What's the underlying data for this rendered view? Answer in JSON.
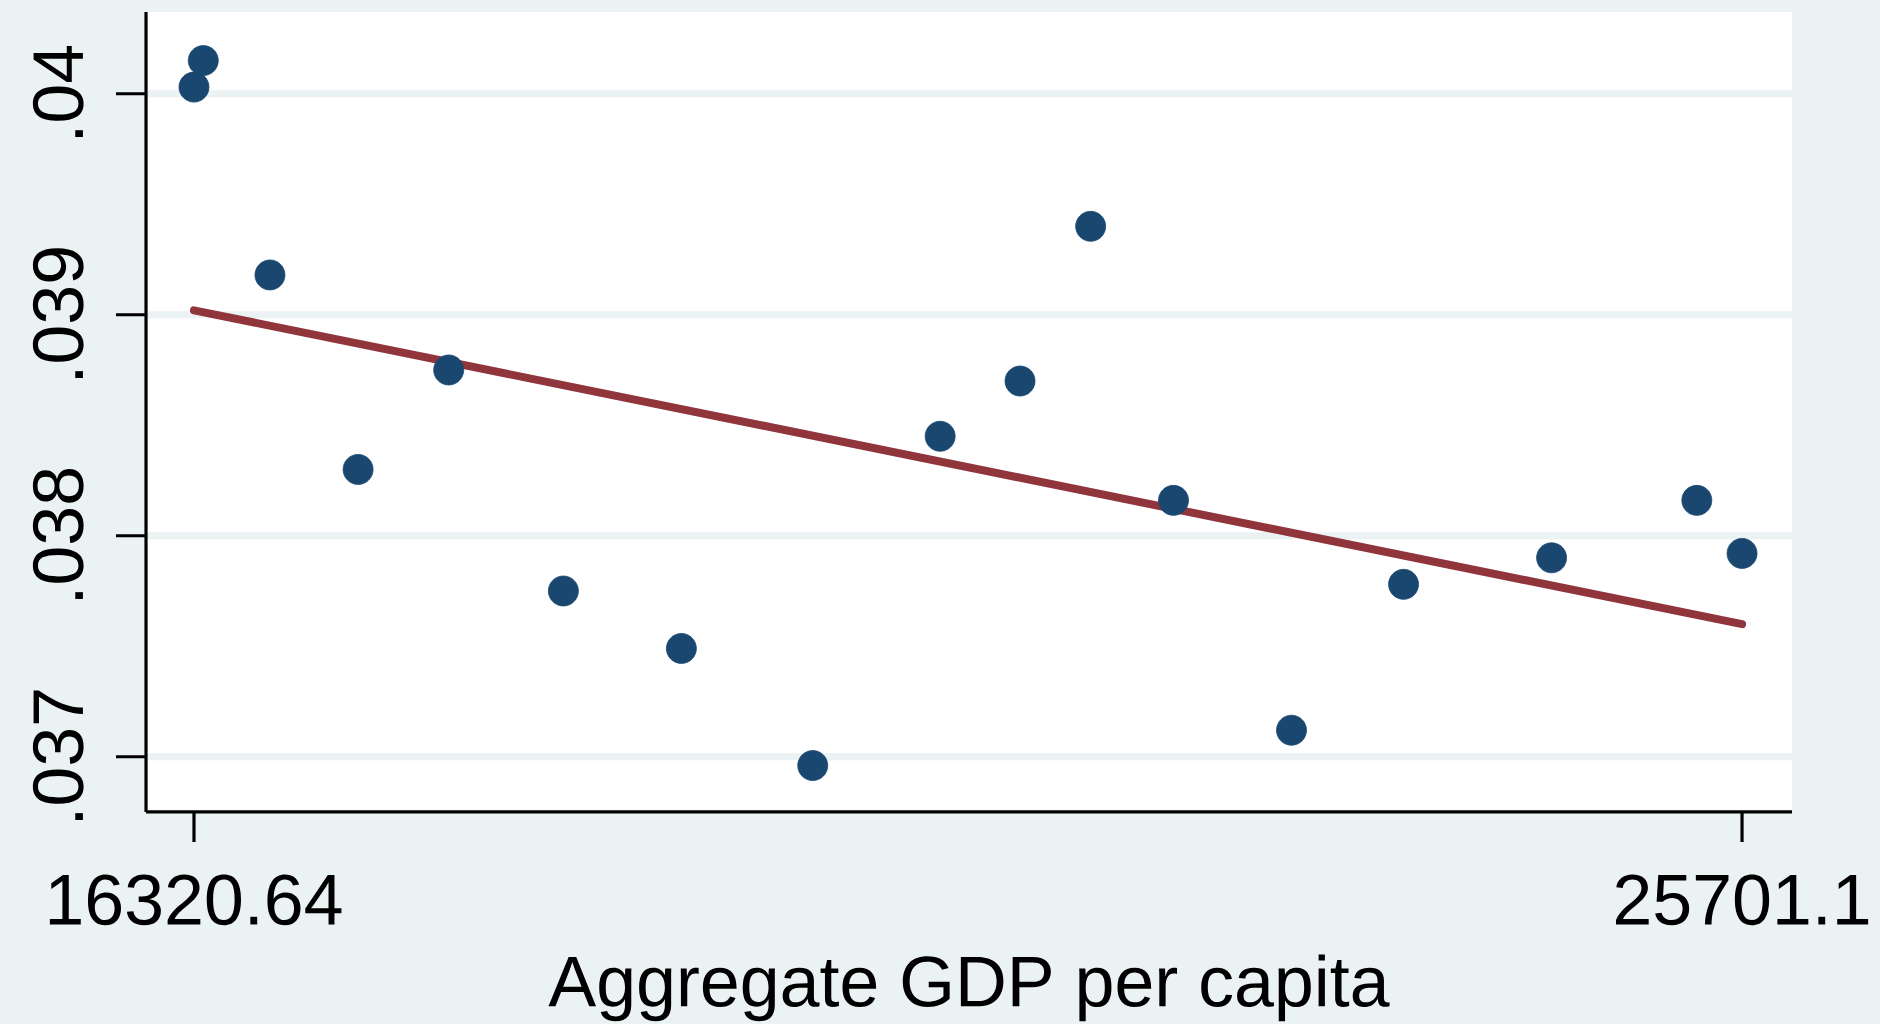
{
  "chart_data": {
    "type": "scatter",
    "xlabel": "Aggregate GDP per capita",
    "xlim": [
      16030,
      26004
    ],
    "xticks": [
      16320.64,
      25701.1
    ],
    "ylim": [
      0.03675,
      0.04037
    ],
    "yticks": [
      {
        "value": 0.037,
        "label": ".037"
      },
      {
        "value": 0.038,
        "label": ".038"
      },
      {
        "value": 0.039,
        "label": ".039"
      },
      {
        "value": 0.04,
        "label": ".04"
      }
    ],
    "grid": "y",
    "marker": "circle",
    "series": [
      {
        "color": "#1a476f",
        "x": [
          16320.64,
          16377,
          16781,
          17315,
          17864,
          18559,
          19274,
          20070,
          20842,
          21326,
          21754,
          22256,
          22971,
          23650,
          24547,
          25427,
          25701.1
        ],
        "values": [
          0.04003,
          0.04015,
          0.03918,
          0.0383,
          0.03875,
          0.03775,
          0.03749,
          0.03696,
          0.03845,
          0.0387,
          0.0394,
          0.03816,
          0.03712,
          0.03778,
          0.0379,
          0.03816,
          0.03792
        ]
      },
      {
        "type": "line",
        "marker": "none",
        "color": "#90353b",
        "x": [
          16320.64,
          25701.1
        ],
        "values": [
          0.03902,
          0.0376
        ]
      }
    ]
  }
}
